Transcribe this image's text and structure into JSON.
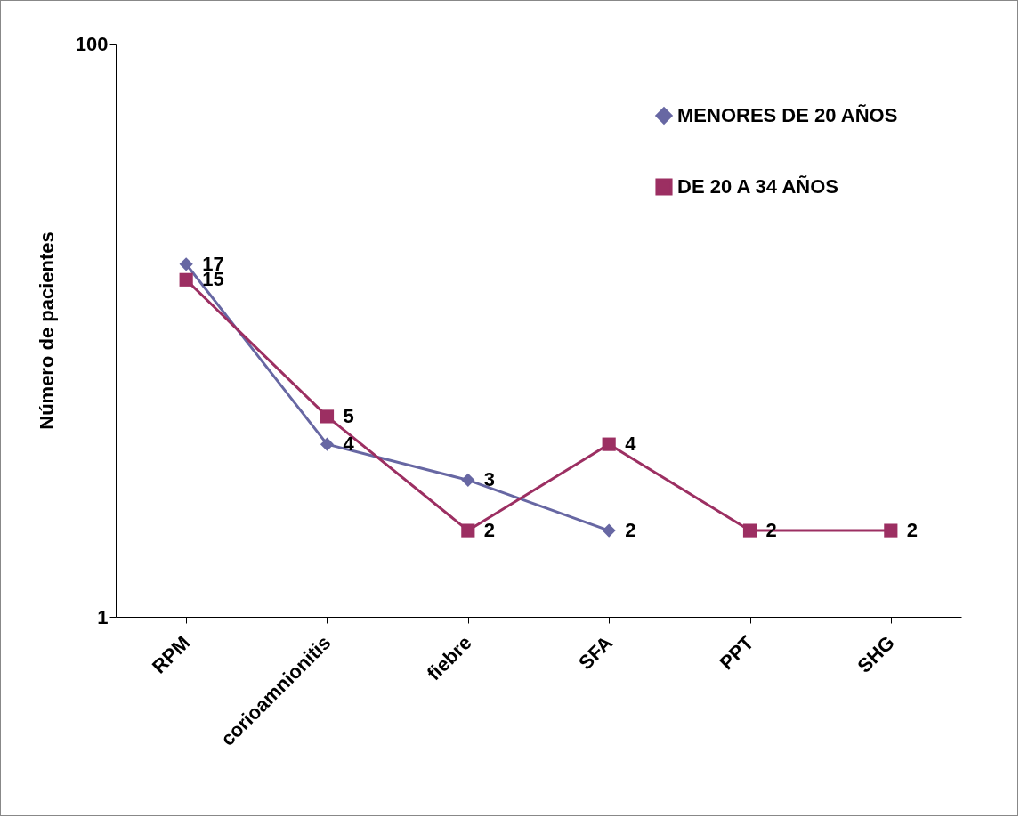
{
  "chart_data": {
    "type": "line",
    "ylabel": "Número de pacientes",
    "categories": [
      "RPM",
      "corioamnionitis",
      "fiebre",
      "SFA",
      "PPT",
      "SHG"
    ],
    "series": [
      {
        "name": "MENORES DE 20 AÑOS",
        "color": "#6767a3",
        "marker": "diamond",
        "values": [
          17,
          4,
          3,
          2,
          null,
          null
        ]
      },
      {
        "name": "DE 20 A 34 AÑOS",
        "color": "#9c2f62",
        "marker": "square",
        "values": [
          15,
          5,
          2,
          4,
          2,
          2
        ]
      }
    ],
    "log": true,
    "ylim": [
      1,
      100
    ],
    "yticks": [
      1,
      100
    ],
    "grid": false,
    "legend": "top right",
    "data_labels": true
  }
}
